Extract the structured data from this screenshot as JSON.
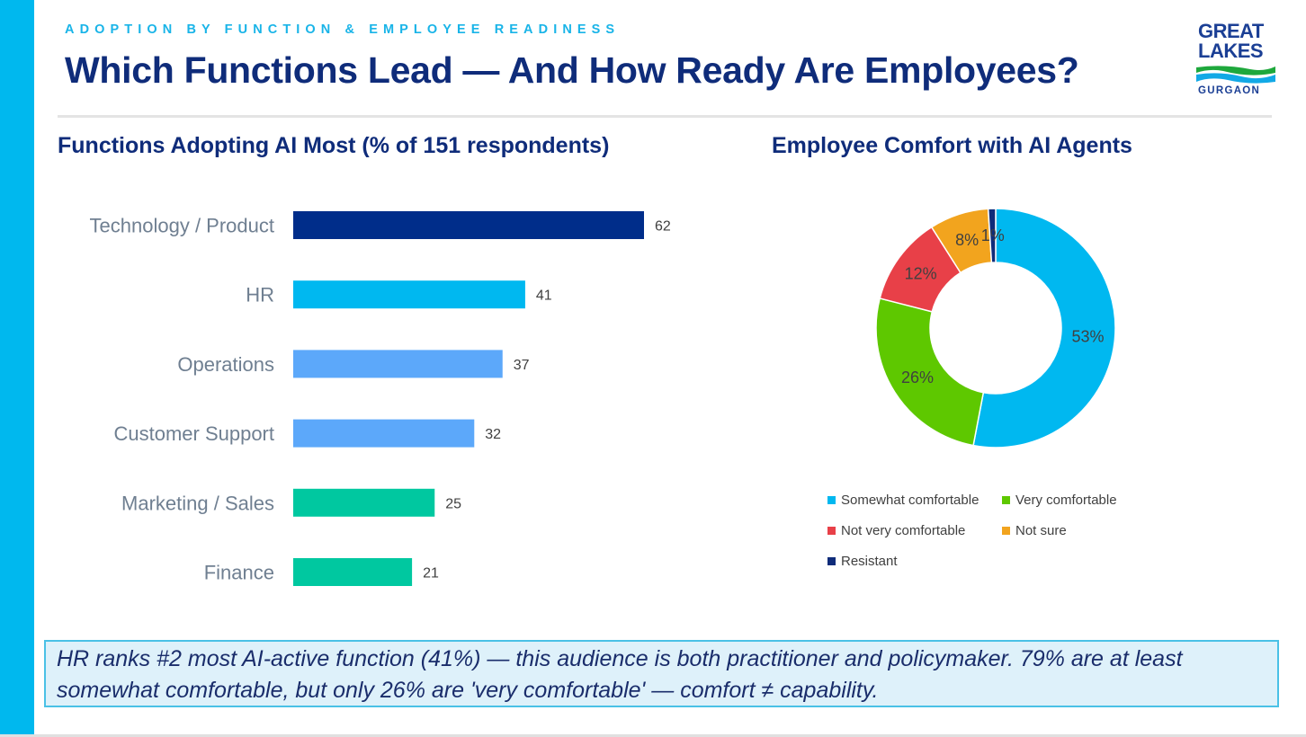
{
  "header": {
    "kicker": "ADOPTION BY FUNCTION & EMPLOYEE READINESS",
    "title": "Which Functions Lead — And How Ready Are Employees?"
  },
  "logo": {
    "line1": "GREAT",
    "line2": "LAKES",
    "line3": "GURGAON"
  },
  "colors": {
    "accent_bar": "#00b8ee",
    "title_navy": "#0f2c7a",
    "callout_bg": "#def1fa",
    "callout_border": "#4ac1e6"
  },
  "chart_data": [
    {
      "type": "bar",
      "orientation": "horizontal",
      "title": "Functions Adopting AI Most  (% of 151 respondents)",
      "categories": [
        "Technology / Product",
        "HR",
        "Operations",
        "Customer Support",
        "Marketing / Sales",
        "Finance"
      ],
      "values": [
        62,
        41,
        37,
        32,
        25,
        21
      ],
      "bar_colors": [
        "#002d8a",
        "#00b8f0",
        "#5ca8fa",
        "#5ca8fa",
        "#00c8a0",
        "#00c8a0"
      ],
      "data_labels": true,
      "grid": false,
      "xlim": [
        0,
        70
      ]
    },
    {
      "type": "pie",
      "variant": "donut",
      "title": "Employee Comfort with AI Agents",
      "categories": [
        "Somewhat comfortable",
        "Very comfortable",
        "Not very comfortable",
        "Not sure",
        "Resistant"
      ],
      "values": [
        53,
        26,
        12,
        8,
        1
      ],
      "value_labels": [
        "53%",
        "26%",
        "12%",
        "8%",
        "1%"
      ],
      "colors": [
        "#00b8f0",
        "#5ec800",
        "#e84048",
        "#f2a41e",
        "#0f2c7a"
      ],
      "legend_position": "bottom"
    }
  ],
  "callout": {
    "text": "HR ranks #2 most AI-active function (41%) — this audience is both practitioner and policymaker. 79% are at least somewhat comfortable, but only 26% are 'very comfortable' — comfort ≠ capability."
  }
}
